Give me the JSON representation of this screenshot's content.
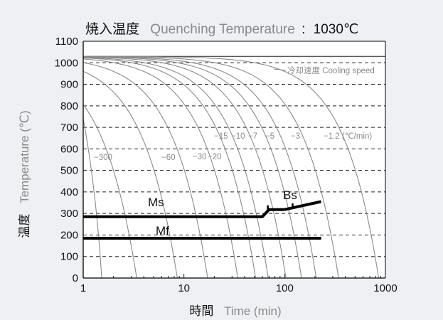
{
  "chart_data": {
    "type": "line",
    "title_jp": "焼入温度",
    "title_en": "Quenching Temperature",
    "title_sep": ":",
    "title_value": "1030℃",
    "xlabel_jp": "時間",
    "xlabel_en": "Time (min)",
    "ylabel_jp": "温度",
    "ylabel_en": "Temperature (℃)",
    "x_scale": "log",
    "xlim": [
      1,
      1000
    ],
    "ylim": [
      0,
      1100
    ],
    "x_ticks": [
      {
        "v": 1,
        "label": "1"
      },
      {
        "v": 10,
        "label": "10"
      },
      {
        "v": 100,
        "label": "100"
      },
      {
        "v": 1000,
        "label": "1000"
      }
    ],
    "y_ticks": [
      {
        "v": 0,
        "label": "0"
      },
      {
        "v": 100,
        "label": "100"
      },
      {
        "v": 200,
        "label": "200"
      },
      {
        "v": 300,
        "label": "300"
      },
      {
        "v": 400,
        "label": "400"
      },
      {
        "v": 500,
        "label": "500"
      },
      {
        "v": 600,
        "label": "600"
      },
      {
        "v": 700,
        "label": "700"
      },
      {
        "v": 800,
        "label": "800"
      },
      {
        "v": 900,
        "label": "900"
      },
      {
        "v": 1000,
        "label": "1000"
      },
      {
        "v": 1100,
        "label": "1100"
      }
    ],
    "grid": "horizontal dashed",
    "quench_temperature": 1030,
    "cooling_speed_label": "冷却速度 Cooling speed",
    "cooling_rate_unit": "(℃/min)",
    "cooling_curves": [
      {
        "rate": -300,
        "label": "−300",
        "end_time": 3.4
      },
      {
        "rate": -120,
        "label": "",
        "end_time": 8.6
      },
      {
        "rate": -60,
        "label": "−60",
        "end_time": 17.2
      },
      {
        "rate": -30,
        "label": "−30",
        "end_time": 34.3
      },
      {
        "rate": -20,
        "label": "−20",
        "end_time": 51.5
      },
      {
        "rate": -15,
        "label": "−15",
        "end_time": 68.7
      },
      {
        "rate": -10,
        "label": "−10",
        "end_time": 103
      },
      {
        "rate": -7,
        "label": "−7",
        "end_time": 147
      },
      {
        "rate": -5,
        "label": "−5",
        "end_time": 206
      },
      {
        "rate": -3,
        "label": "−3",
        "end_time": 343
      },
      {
        "rate": -1.2,
        "label": "−1.2",
        "end_time": 858
      }
    ],
    "transformation_lines": [
      {
        "name": "Ms",
        "label": "Ms",
        "points": [
          [
            1,
            285
          ],
          [
            60,
            285
          ],
          [
            70,
            318
          ],
          [
            100,
            318
          ]
        ]
      },
      {
        "name": "Bs",
        "label": "Bs",
        "points": [
          [
            100,
            318
          ],
          [
            230,
            355
          ]
        ]
      },
      {
        "name": "Mf",
        "label": "Mf",
        "points": [
          [
            1,
            185
          ],
          [
            230,
            185
          ]
        ]
      }
    ]
  }
}
